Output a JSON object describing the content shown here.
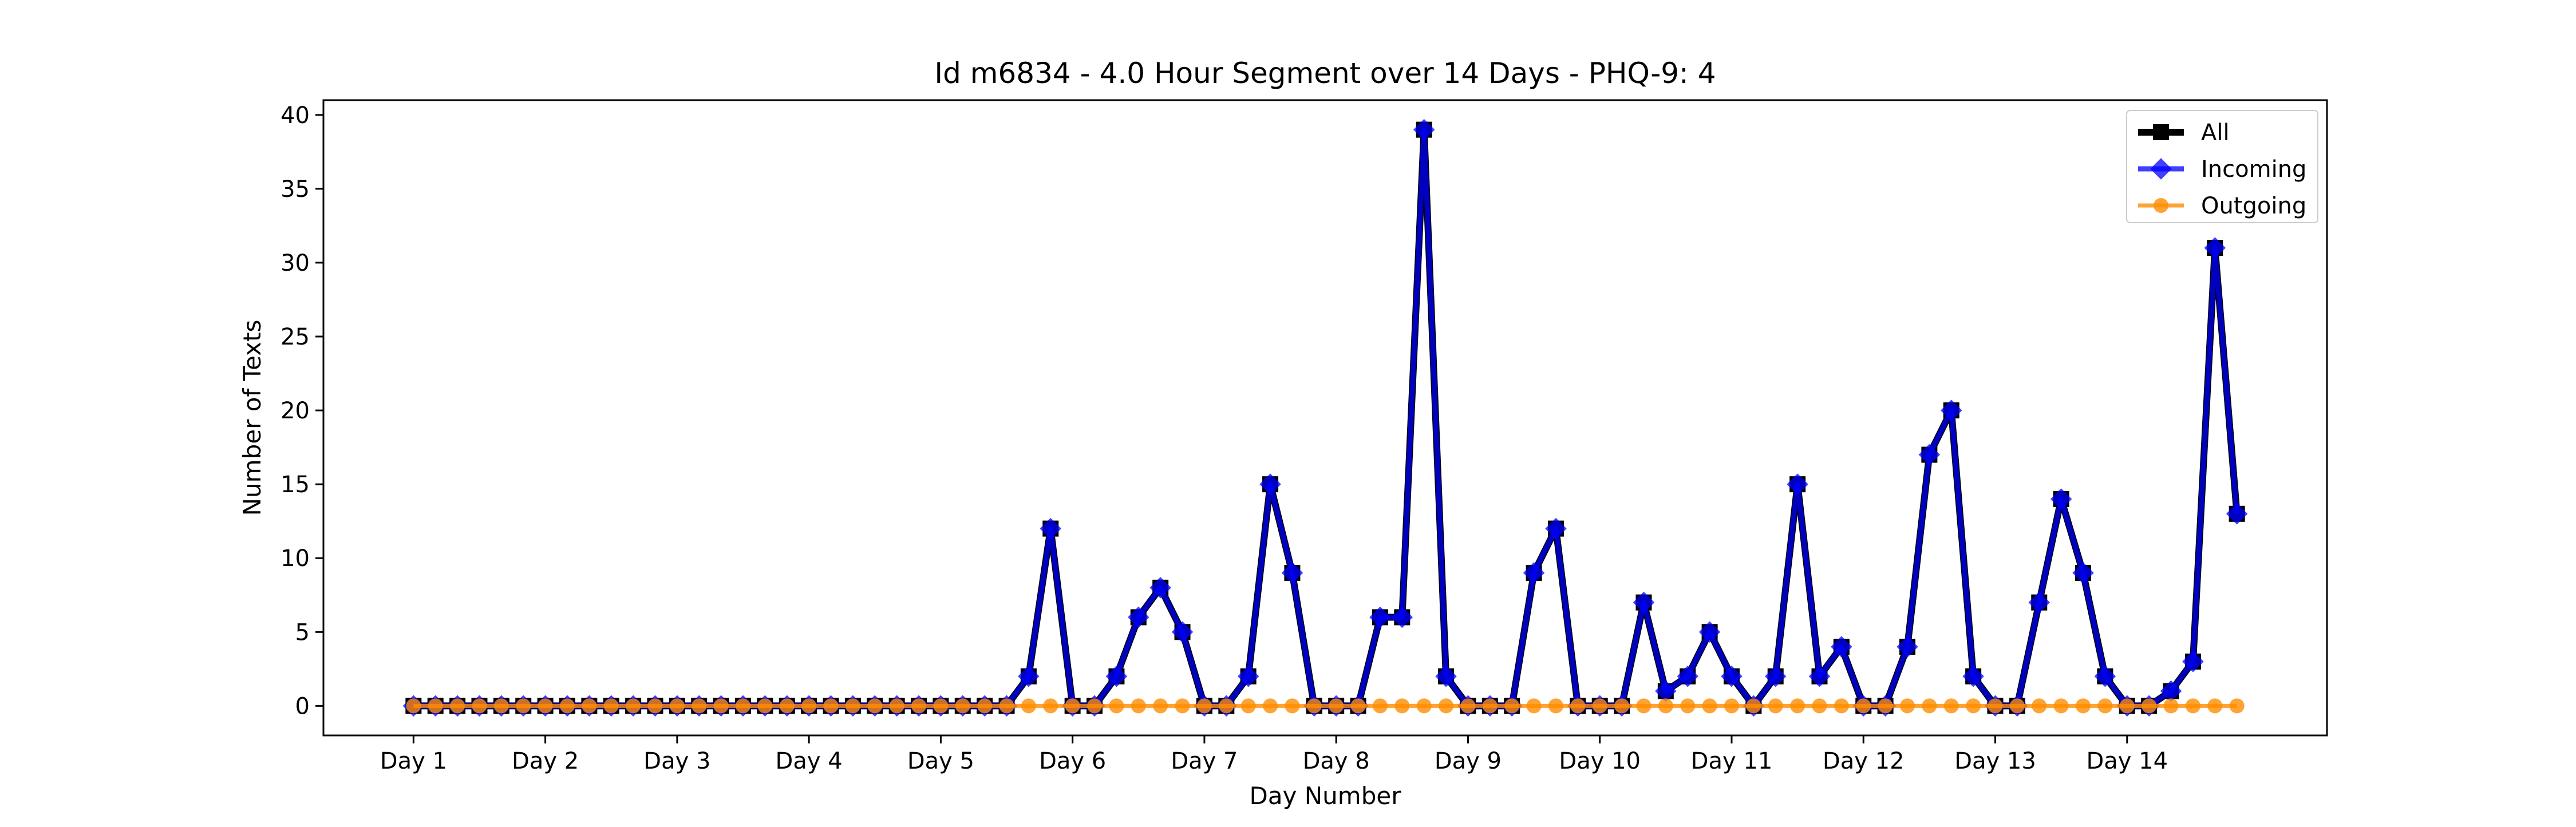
{
  "chart_data": {
    "type": "line",
    "title": "Id m6834 - 4.0 Hour Segment over 14 Days - PHQ-9: 4",
    "xlabel": "Day Number",
    "ylabel": "Number of Texts",
    "ylim": [
      -2,
      41
    ],
    "yticks": [
      0,
      5,
      10,
      15,
      20,
      25,
      30,
      35,
      40
    ],
    "xlim": [
      -4.1,
      87.1
    ],
    "xtick_positions": [
      0,
      6,
      12,
      18,
      24,
      30,
      36,
      42,
      48,
      54,
      60,
      66,
      72,
      78
    ],
    "xtick_labels": [
      "Day 1",
      "Day 2",
      "Day 3",
      "Day 4",
      "Day 5",
      "Day 6",
      "Day 7",
      "Day 8",
      "Day 9",
      "Day 10",
      "Day 11",
      "Day 12",
      "Day 13",
      "Day 14"
    ],
    "grid": false,
    "legend_position": "top-right",
    "series": [
      {
        "name": "All",
        "color": "#000000",
        "marker": "square",
        "values": [
          0,
          0,
          0,
          0,
          0,
          0,
          0,
          0,
          0,
          0,
          0,
          0,
          0,
          0,
          0,
          0,
          0,
          0,
          0,
          0,
          0,
          0,
          0,
          0,
          0,
          0,
          0,
          0,
          2,
          12,
          0,
          0,
          2,
          6,
          8,
          5,
          0,
          0,
          2,
          15,
          9,
          0,
          0,
          0,
          6,
          6,
          39,
          2,
          0,
          0,
          0,
          9,
          12,
          0,
          0,
          0,
          7,
          1,
          2,
          5,
          2,
          0,
          2,
          15,
          2,
          4,
          0,
          0,
          4,
          17,
          20,
          2,
          0,
          0,
          7,
          14,
          9,
          2,
          0,
          0,
          1,
          3,
          31,
          13
        ]
      },
      {
        "name": "Incoming",
        "color": "#0000ff",
        "marker": "diamond",
        "values": [
          0,
          0,
          0,
          0,
          0,
          0,
          0,
          0,
          0,
          0,
          0,
          0,
          0,
          0,
          0,
          0,
          0,
          0,
          0,
          0,
          0,
          0,
          0,
          0,
          0,
          0,
          0,
          0,
          2,
          12,
          0,
          0,
          2,
          6,
          8,
          5,
          0,
          0,
          2,
          15,
          9,
          0,
          0,
          0,
          6,
          6,
          39,
          2,
          0,
          0,
          0,
          9,
          12,
          0,
          0,
          0,
          7,
          1,
          2,
          5,
          2,
          0,
          2,
          15,
          2,
          4,
          0,
          0,
          4,
          17,
          20,
          2,
          0,
          0,
          7,
          14,
          9,
          2,
          0,
          0,
          1,
          3,
          31,
          13
        ]
      },
      {
        "name": "Outgoing",
        "color": "#ff8c00",
        "marker": "circle",
        "values": [
          0,
          0,
          0,
          0,
          0,
          0,
          0,
          0,
          0,
          0,
          0,
          0,
          0,
          0,
          0,
          0,
          0,
          0,
          0,
          0,
          0,
          0,
          0,
          0,
          0,
          0,
          0,
          0,
          0,
          0,
          0,
          0,
          0,
          0,
          0,
          0,
          0,
          0,
          0,
          0,
          0,
          0,
          0,
          0,
          0,
          0,
          0,
          0,
          0,
          0,
          0,
          0,
          0,
          0,
          0,
          0,
          0,
          0,
          0,
          0,
          0,
          0,
          0,
          0,
          0,
          0,
          0,
          0,
          0,
          0,
          0,
          0,
          0,
          0,
          0,
          0,
          0,
          0,
          0,
          0,
          0,
          0,
          0,
          0
        ]
      }
    ]
  }
}
